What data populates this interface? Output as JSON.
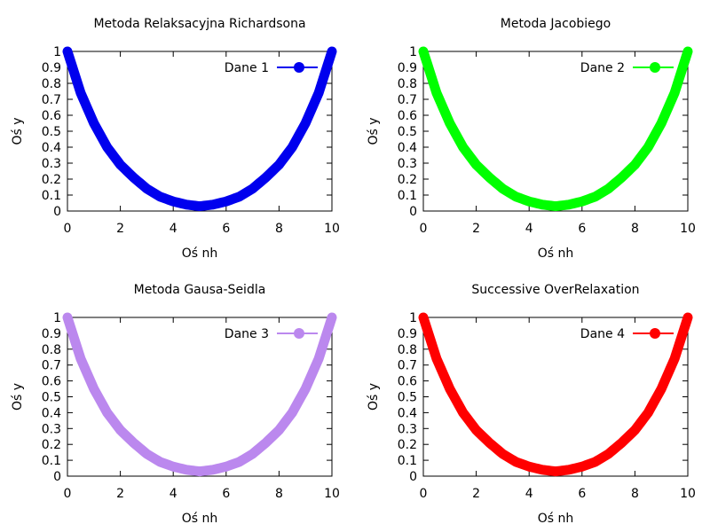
{
  "chart_data": [
    {
      "type": "line",
      "title": "Metoda Relaksacyjna Richardsona",
      "xlabel": "Oś nh",
      "ylabel": "Oś y",
      "xlim": [
        0,
        10
      ],
      "ylim": [
        0,
        1
      ],
      "xticks": [
        "0",
        "2",
        "4",
        "6",
        "8",
        "10"
      ],
      "yticks": [
        "0",
        "0.1",
        "0.2",
        "0.3",
        "0.4",
        "0.5",
        "0.6",
        "0.7",
        "0.8",
        "0.9",
        "1"
      ],
      "legend_position": "top-right",
      "grid": false,
      "series": [
        {
          "name": "Dane 1",
          "color": "#0000ee",
          "x": [
            0,
            0.5,
            1,
            1.5,
            2,
            2.5,
            3,
            3.5,
            4,
            4.5,
            5,
            5.5,
            6,
            6.5,
            7,
            7.5,
            8,
            8.5,
            9,
            9.5,
            10
          ],
          "y": [
            1,
            0.74,
            0.55,
            0.4,
            0.29,
            0.21,
            0.14,
            0.09,
            0.06,
            0.04,
            0.03,
            0.04,
            0.06,
            0.09,
            0.14,
            0.21,
            0.29,
            0.4,
            0.55,
            0.74,
            1
          ]
        }
      ]
    },
    {
      "type": "line",
      "title": "Metoda Jacobiego",
      "xlabel": "Oś nh",
      "ylabel": "Oś y",
      "xlim": [
        0,
        10
      ],
      "ylim": [
        0,
        1
      ],
      "xticks": [
        "0",
        "2",
        "4",
        "6",
        "8",
        "10"
      ],
      "yticks": [
        "0",
        "0.1",
        "0.2",
        "0.3",
        "0.4",
        "0.5",
        "0.6",
        "0.7",
        "0.8",
        "0.9",
        "1"
      ],
      "legend_position": "top-right",
      "grid": false,
      "series": [
        {
          "name": "Dane 2",
          "color": "#00ff00",
          "x": [
            0,
            0.5,
            1,
            1.5,
            2,
            2.5,
            3,
            3.5,
            4,
            4.5,
            5,
            5.5,
            6,
            6.5,
            7,
            7.5,
            8,
            8.5,
            9,
            9.5,
            10
          ],
          "y": [
            1,
            0.74,
            0.55,
            0.4,
            0.29,
            0.21,
            0.14,
            0.09,
            0.06,
            0.04,
            0.03,
            0.04,
            0.06,
            0.09,
            0.14,
            0.21,
            0.29,
            0.4,
            0.55,
            0.74,
            1
          ]
        }
      ]
    },
    {
      "type": "line",
      "title": "Metoda Gausa-Seidla",
      "xlabel": "Oś nh",
      "ylabel": "Oś y",
      "xlim": [
        0,
        10
      ],
      "ylim": [
        0,
        1
      ],
      "xticks": [
        "0",
        "2",
        "4",
        "6",
        "8",
        "10"
      ],
      "yticks": [
        "0",
        "0.1",
        "0.2",
        "0.3",
        "0.4",
        "0.5",
        "0.6",
        "0.7",
        "0.8",
        "0.9",
        "1"
      ],
      "legend_position": "top-right",
      "grid": false,
      "series": [
        {
          "name": "Dane 3",
          "color": "#bb88ee",
          "x": [
            0,
            0.5,
            1,
            1.5,
            2,
            2.5,
            3,
            3.5,
            4,
            4.5,
            5,
            5.5,
            6,
            6.5,
            7,
            7.5,
            8,
            8.5,
            9,
            9.5,
            10
          ],
          "y": [
            1,
            0.74,
            0.55,
            0.4,
            0.29,
            0.21,
            0.14,
            0.09,
            0.06,
            0.04,
            0.03,
            0.04,
            0.06,
            0.09,
            0.14,
            0.21,
            0.29,
            0.4,
            0.55,
            0.74,
            1
          ]
        }
      ]
    },
    {
      "type": "line",
      "title": "Successive OverRelaxation",
      "xlabel": "Oś nh",
      "ylabel": "Oś y",
      "xlim": [
        0,
        10
      ],
      "ylim": [
        0,
        1
      ],
      "xticks": [
        "0",
        "2",
        "4",
        "6",
        "8",
        "10"
      ],
      "yticks": [
        "0",
        "0.1",
        "0.2",
        "0.3",
        "0.4",
        "0.5",
        "0.6",
        "0.7",
        "0.8",
        "0.9",
        "1"
      ],
      "legend_position": "top-right",
      "grid": false,
      "series": [
        {
          "name": "Dane 4",
          "color": "#ff0000",
          "x": [
            0,
            0.5,
            1,
            1.5,
            2,
            2.5,
            3,
            3.5,
            4,
            4.5,
            5,
            5.5,
            6,
            6.5,
            7,
            7.5,
            8,
            8.5,
            9,
            9.5,
            10
          ],
          "y": [
            1,
            0.74,
            0.55,
            0.4,
            0.29,
            0.21,
            0.14,
            0.09,
            0.06,
            0.04,
            0.03,
            0.04,
            0.06,
            0.09,
            0.14,
            0.21,
            0.29,
            0.4,
            0.55,
            0.74,
            1
          ]
        }
      ]
    }
  ]
}
